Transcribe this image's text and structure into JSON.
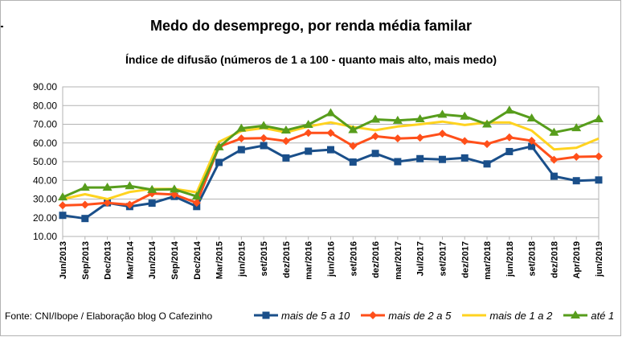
{
  "chart_data": {
    "type": "line",
    "title": "Medo do desemprego, por renda média familar",
    "subtitle": "Índice de difusão (números de 1 a 100 - quanto mais alto, mais medo)",
    "source": "Fonte: CNI/Ibope / Elaboração blog O Cafezinho",
    "ylim": [
      10,
      90
    ],
    "yticks": [
      "10.00",
      "20.00",
      "30.00",
      "40.00",
      "50.00",
      "60.00",
      "70.00",
      "80.00",
      "90.00"
    ],
    "grid": true,
    "legend_position": "bottom",
    "categories": [
      "Jun/2013",
      "Sep/2013",
      "Dec/2013",
      "Mar/2014",
      "Jun/2014",
      "Sep/2014",
      "Dec/2014",
      "Mar/2015",
      "jun/2015",
      "set/2015",
      "dez/2015",
      "mar/2016",
      "jun/2016",
      "set/2016",
      "dez/2016",
      "mar/2017",
      "Jul/2017",
      "set/2017",
      "dez/2017",
      "mar/2018",
      "jun/2018",
      "set/2018",
      "dez/2018",
      "Apr/2019",
      "jun/2019"
    ],
    "series": [
      {
        "name": "mais de 5 a 10",
        "color": "#1a4f8a",
        "marker": "square",
        "values": [
          21.3,
          19.6,
          28,
          26,
          27.8,
          31.4,
          26,
          49.6,
          56.4,
          58.6,
          52,
          55.6,
          56.4,
          49.8,
          54.4,
          50,
          51.6,
          51.2,
          52,
          48.8,
          55.4,
          58.2,
          42.2,
          39.8,
          40.2
        ]
      },
      {
        "name": "mais de 2 a 5",
        "color": "#ff4f1a",
        "marker": "diamond",
        "values": [
          26.6,
          27,
          28,
          27,
          33,
          32.4,
          28,
          58,
          62.4,
          62.6,
          61,
          65.4,
          65.4,
          58.4,
          63.6,
          62.4,
          62.8,
          65,
          61,
          59.4,
          63,
          61.2,
          51,
          52.6,
          52.8
        ]
      },
      {
        "name": "mais de 1 a 2",
        "color": "#ffd320",
        "marker": "none",
        "values": [
          30,
          32.6,
          30,
          33.8,
          35.4,
          35.4,
          33.6,
          60.6,
          66.4,
          68,
          65.6,
          68.8,
          71,
          68.6,
          66.8,
          68.8,
          70,
          71.4,
          69.6,
          71,
          71,
          66.6,
          56.6,
          57.4,
          62.4
        ]
      },
      {
        "name": "até 1",
        "color": "#579d1c",
        "marker": "triangle",
        "values": [
          31,
          36.2,
          36.2,
          37,
          35,
          35.2,
          31.4,
          57.8,
          67.8,
          69.2,
          66.8,
          69.8,
          76,
          67,
          72.6,
          72,
          72.8,
          75.2,
          74.2,
          70,
          77.4,
          73.2,
          65.6,
          68,
          72.8
        ]
      }
    ]
  }
}
